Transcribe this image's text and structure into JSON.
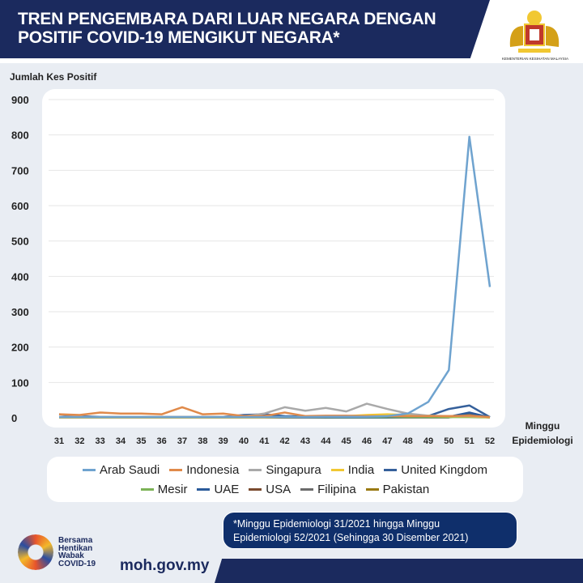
{
  "header": {
    "title_line1": "TREN PENGEMBARA DARI LUAR NEGARA DENGAN",
    "title_line2": "POSITIF COVID-19 MENGIKUT NEGARA*",
    "ministry": "KEMENTERIAN KESIHATAN MALAYSIA"
  },
  "chart_data": {
    "type": "line",
    "title": "TREN PENGEMBARA DARI LUAR NEGARA DENGAN POSITIF COVID-19 MENGIKUT NEGARA*",
    "ylabel": "Jumlah Kes Positif",
    "xlabel": "Minggu Epidemiologi",
    "xlabel_line1": "Minggu",
    "xlabel_line2": "Epidemiologi",
    "ylim": [
      0,
      900
    ],
    "yticks": [
      0,
      100,
      200,
      300,
      400,
      500,
      600,
      700,
      800,
      900
    ],
    "x": [
      31,
      32,
      33,
      34,
      35,
      36,
      37,
      38,
      39,
      40,
      41,
      42,
      43,
      44,
      45,
      46,
      47,
      48,
      49,
      50,
      51,
      52
    ],
    "grid": true,
    "legend_position": "bottom",
    "series": [
      {
        "name": "Arab Saudi",
        "color": "#6fa3cf",
        "values": [
          2,
          2,
          2,
          2,
          2,
          2,
          2,
          2,
          2,
          2,
          2,
          3,
          2,
          3,
          3,
          3,
          5,
          12,
          45,
          135,
          795,
          370
        ]
      },
      {
        "name": "Indonesia",
        "color": "#e08a4a",
        "values": [
          10,
          8,
          15,
          12,
          12,
          10,
          30,
          10,
          12,
          5,
          5,
          15,
          5,
          6,
          6,
          5,
          5,
          5,
          5,
          5,
          6,
          2
        ]
      },
      {
        "name": "Singapura",
        "color": "#a9a9a9",
        "values": [
          3,
          3,
          3,
          3,
          3,
          3,
          3,
          3,
          3,
          4,
          12,
          30,
          20,
          28,
          18,
          40,
          25,
          12,
          6,
          5,
          5,
          2
        ]
      },
      {
        "name": "India",
        "color": "#f1c832",
        "values": [
          1,
          1,
          1,
          1,
          1,
          1,
          1,
          1,
          1,
          1,
          1,
          2,
          2,
          3,
          5,
          8,
          10,
          8,
          6,
          4,
          4,
          1
        ]
      },
      {
        "name": "United Kingdom",
        "color": "#35609b",
        "values": [
          10,
          5,
          3,
          3,
          3,
          3,
          3,
          3,
          3,
          8,
          10,
          5,
          4,
          4,
          4,
          4,
          4,
          5,
          5,
          25,
          35,
          2
        ]
      },
      {
        "name": "Mesir",
        "color": "#7cb356",
        "values": [
          2,
          2,
          2,
          2,
          3,
          2,
          3,
          2,
          2,
          2,
          2,
          2,
          2,
          2,
          2,
          2,
          2,
          2,
          2,
          2,
          2,
          1
        ]
      },
      {
        "name": "UAE",
        "color": "#2a5a9a",
        "values": [
          1,
          1,
          1,
          1,
          1,
          1,
          1,
          1,
          1,
          1,
          1,
          1,
          1,
          1,
          1,
          1,
          1,
          2,
          2,
          3,
          15,
          1
        ]
      },
      {
        "name": "USA",
        "color": "#7a4a2e",
        "values": [
          1,
          1,
          1,
          1,
          1,
          1,
          1,
          1,
          1,
          1,
          1,
          1,
          1,
          1,
          2,
          2,
          2,
          2,
          2,
          3,
          5,
          1
        ]
      },
      {
        "name": "Filipina",
        "color": "#6b6b6b",
        "values": [
          1,
          1,
          1,
          1,
          1,
          1,
          1,
          1,
          1,
          1,
          1,
          1,
          1,
          1,
          1,
          1,
          1,
          1,
          1,
          1,
          10,
          1
        ]
      },
      {
        "name": "Pakistan",
        "color": "#9a7a12",
        "values": [
          3,
          3,
          2,
          2,
          2,
          2,
          2,
          2,
          2,
          2,
          2,
          3,
          3,
          3,
          4,
          3,
          3,
          3,
          3,
          3,
          4,
          1
        ]
      }
    ]
  },
  "note": {
    "line1": "*Minggu Epidemiologi 31/2021 hingga Minggu",
    "line2": "Epidemiologi 52/2021 (Sehingga 30 Disember 2021)"
  },
  "footer": {
    "brand": [
      "Bersama",
      "Hentikan",
      "Wabak",
      "COVID-19"
    ],
    "site": "moh.gov.my"
  }
}
